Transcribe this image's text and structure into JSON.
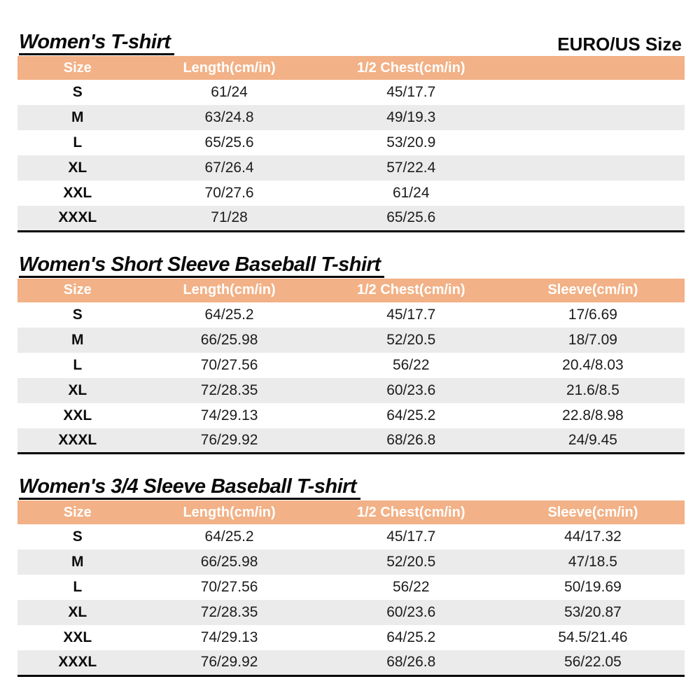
{
  "page": {
    "size_system_label": "EURO/US Size"
  },
  "colors": {
    "header_bg": "#F2B186",
    "row_alt_bg": "#EBEBEB",
    "header_text": "#FFFFFF",
    "border": "#000000"
  },
  "tables": [
    {
      "title": "Women's T-shirt",
      "columns": [
        "Size",
        "Length(cm/in)",
        "1/2 Chest(cm/in)",
        ""
      ],
      "rows": [
        [
          "S",
          "61/24",
          "45/17.7",
          ""
        ],
        [
          "M",
          "63/24.8",
          "49/19.3",
          ""
        ],
        [
          "L",
          "65/25.6",
          "53/20.9",
          ""
        ],
        [
          "XL",
          "67/26.4",
          "57/22.4",
          ""
        ],
        [
          "XXL",
          "70/27.6",
          "61/24",
          ""
        ],
        [
          "XXXL",
          "71/28",
          "65/25.6",
          ""
        ]
      ]
    },
    {
      "title": "Women's Short Sleeve Baseball T-shirt",
      "columns": [
        "Size",
        "Length(cm/in)",
        "1/2 Chest(cm/in)",
        "Sleeve(cm/in)"
      ],
      "rows": [
        [
          "S",
          "64/25.2",
          "45/17.7",
          "17/6.69"
        ],
        [
          "M",
          "66/25.98",
          "52/20.5",
          "18/7.09"
        ],
        [
          "L",
          "70/27.56",
          "56/22",
          "20.4/8.03"
        ],
        [
          "XL",
          "72/28.35",
          "60/23.6",
          "21.6/8.5"
        ],
        [
          "XXL",
          "74/29.13",
          "64/25.2",
          "22.8/8.98"
        ],
        [
          "XXXL",
          "76/29.92",
          "68/26.8",
          "24/9.45"
        ]
      ]
    },
    {
      "title": "Women's 3/4 Sleeve Baseball T-shirt",
      "columns": [
        "Size",
        "Length(cm/in)",
        "1/2 Chest(cm/in)",
        "Sleeve(cm/in)"
      ],
      "rows": [
        [
          "S",
          "64/25.2",
          "45/17.7",
          "44/17.32"
        ],
        [
          "M",
          "66/25.98",
          "52/20.5",
          "47/18.5"
        ],
        [
          "L",
          "70/27.56",
          "56/22",
          "50/19.69"
        ],
        [
          "XL",
          "72/28.35",
          "60/23.6",
          "53/20.87"
        ],
        [
          "XXL",
          "74/29.13",
          "64/25.2",
          "54.5/21.46"
        ],
        [
          "XXXL",
          "76/29.92",
          "68/26.8",
          "56/22.05"
        ]
      ]
    }
  ]
}
